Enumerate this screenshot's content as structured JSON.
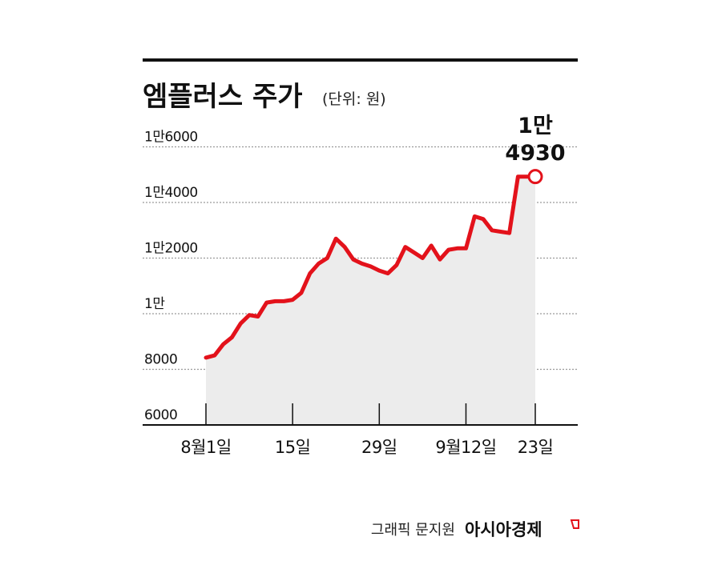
{
  "chart_data": {
    "type": "area",
    "title": "엠플러스 주가",
    "unit_label": "(단위: 원)",
    "y_ticks": [
      {
        "value": 6000,
        "label": "6000"
      },
      {
        "value": 8000,
        "label": "8000"
      },
      {
        "value": 10000,
        "label": "1만"
      },
      {
        "value": 12000,
        "label": "1만2000"
      },
      {
        "value": 14000,
        "label": "1만4000"
      },
      {
        "value": 16000,
        "label": "1만6000"
      }
    ],
    "x_ticks": [
      {
        "index": 0,
        "label": "8월1일"
      },
      {
        "index": 10,
        "label": "15일"
      },
      {
        "index": 20,
        "label": "29일"
      },
      {
        "index": 30,
        "label": "9월12일"
      },
      {
        "index": 38,
        "label": "23일"
      }
    ],
    "ylim": [
      6000,
      16600
    ],
    "grid": true,
    "series": [
      {
        "values": [
          8420,
          8500,
          8900,
          9150,
          9650,
          9950,
          9900,
          10400,
          10450,
          10450,
          10500,
          10750,
          11450,
          11800,
          12000,
          12700,
          12400,
          11950,
          11800,
          11700,
          11550,
          11450,
          11750,
          12400,
          12200,
          12000,
          12450,
          11950,
          12300,
          12350,
          12350,
          13500,
          13400,
          13000,
          12950,
          12900,
          14930,
          14930,
          14930
        ]
      }
    ],
    "peak_annotation": {
      "index": 38,
      "value": 14930,
      "line1": "1만",
      "line2": "4930"
    }
  },
  "footer": {
    "credit": "그래픽 문지원",
    "brand": "아시아경제"
  },
  "colors": {
    "line": "#e3121b",
    "area": "#ececec",
    "grid": "#9a9a9a",
    "rule": "#111111"
  }
}
